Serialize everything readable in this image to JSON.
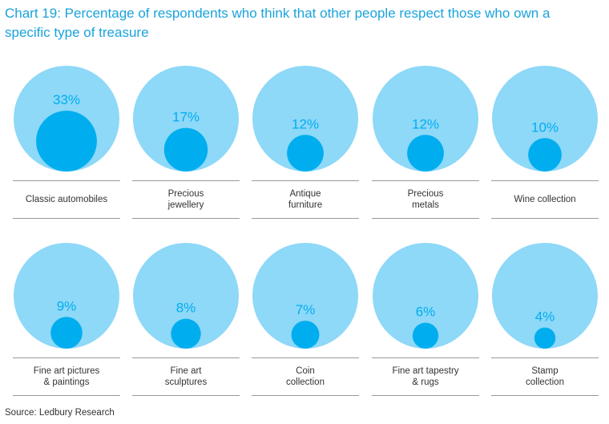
{
  "chart_data": {
    "type": "bubble",
    "title": "Chart 19: Percentage of respondents who think that other people respect those who own a specific type of treasure",
    "unit": "%",
    "max": 100,
    "categories": [
      "Classic automobiles",
      "Precious\njewellery",
      "Antique\nfurniture",
      "Precious\nmetals",
      "Wine collection",
      "Fine art pictures\n& paintings",
      "Fine art\nsculptures",
      "Coin\ncollection",
      "Fine art tapestry\n& rugs",
      "Stamp\ncollection"
    ],
    "values": [
      33,
      17,
      12,
      12,
      10,
      9,
      8,
      7,
      6,
      4
    ],
    "value_labels": [
      "33%",
      "17%",
      "12%",
      "12%",
      "10%",
      "9%",
      "8%",
      "7%",
      "6%",
      "4%"
    ],
    "colors": {
      "outer": "#8ed8f8",
      "inner": "#00aeef",
      "text": "#00aeef",
      "rule": "#999999"
    }
  },
  "source": "Source: Ledbury Research"
}
